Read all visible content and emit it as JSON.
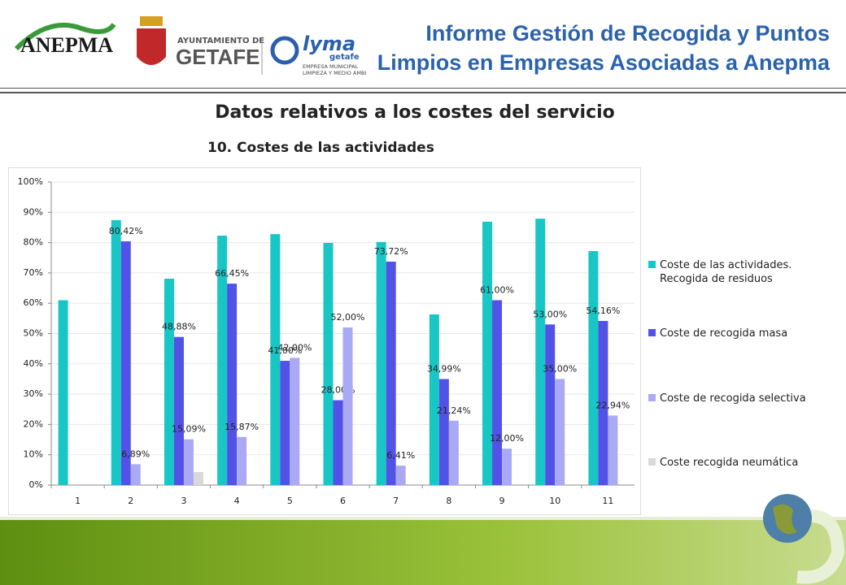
{
  "header": {
    "title_line1": "Informe Gestión de Recogida y Puntos",
    "title_line2": "Limpios en Empresas Asociadas a Anepma",
    "logo_anepma": "ANEPMA",
    "logo_ayto": "AYUNTAMIENTO DE",
    "logo_getafe": "GETAFE",
    "logo_lyma": "lyma",
    "logo_lyma_sub": "getafe",
    "logo_lyma_line1": "EMPRESA MUNICIPAL",
    "logo_lyma_line2": "LIMPIEZA Y MEDIO AMBIENTE"
  },
  "chart_data": {
    "type": "bar",
    "title": "Datos relativos a los costes del servicio",
    "subtitle": "10. Costes de las actividades",
    "categories": [
      "1",
      "2",
      "3",
      "4",
      "5",
      "6",
      "7",
      "8",
      "9",
      "10",
      "11"
    ],
    "series": [
      {
        "name": "Coste de las actividades. Recogida de residuos",
        "color": "#19c6c6",
        "values": [
          61,
          87.4,
          68.1,
          82.3,
          82.8,
          79.9,
          80.2,
          56.3,
          86.9,
          87.9,
          77.2
        ]
      },
      {
        "name": "Coste de recogida masa",
        "color": "#5252e6",
        "values": [
          null,
          80.42,
          48.88,
          66.45,
          41,
          28,
          73.72,
          34.99,
          61,
          53,
          54.16
        ],
        "value_labels": [
          null,
          "80,42%",
          "48,88%",
          "66,45%",
          "41,00%",
          "28,00%",
          "73,72%",
          "34,99%",
          "61,00%",
          "53,00%",
          "54,16%"
        ]
      },
      {
        "name": "Coste de recogida selectiva",
        "color": "#aaaaf4",
        "values": [
          null,
          6.89,
          15.09,
          15.87,
          42,
          52,
          6.41,
          21.24,
          12,
          35,
          22.94
        ],
        "value_labels": [
          null,
          "6,89%",
          "15,09%",
          "15,87%",
          "42,00%",
          "52,00%",
          "6,41%",
          "21,24%",
          "12,00%",
          "35,00%",
          "22,94%"
        ]
      },
      {
        "name": "Coste recogida neumática",
        "color": "#d9d9d9",
        "values": [
          null,
          null,
          4.3,
          null,
          null,
          null,
          null,
          null,
          null,
          null,
          null
        ]
      }
    ],
    "ylim": [
      0,
      100
    ],
    "yticks": [
      {
        "value": 0,
        "label": "0%"
      },
      {
        "value": 10,
        "label": "10%"
      },
      {
        "value": 20,
        "label": "20%"
      },
      {
        "value": 30,
        "label": "30%"
      },
      {
        "value": 40,
        "label": "40%"
      },
      {
        "value": 50,
        "label": "50%"
      },
      {
        "value": 60,
        "label": "60%"
      },
      {
        "value": 70,
        "label": "70%"
      },
      {
        "value": 80,
        "label": "80%"
      },
      {
        "value": 90,
        "label": "90%"
      },
      {
        "value": 100,
        "label": "100%"
      }
    ],
    "grid": true,
    "legend": "right"
  }
}
